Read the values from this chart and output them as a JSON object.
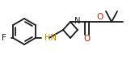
{
  "bg_color": "#ffffff",
  "line_color": "#1a1a1a",
  "line_width": 1.3,
  "figsize": [
    1.62,
    0.78
  ],
  "dpi": 100,
  "xlim": [
    0,
    162
  ],
  "ylim": [
    0,
    78
  ]
}
